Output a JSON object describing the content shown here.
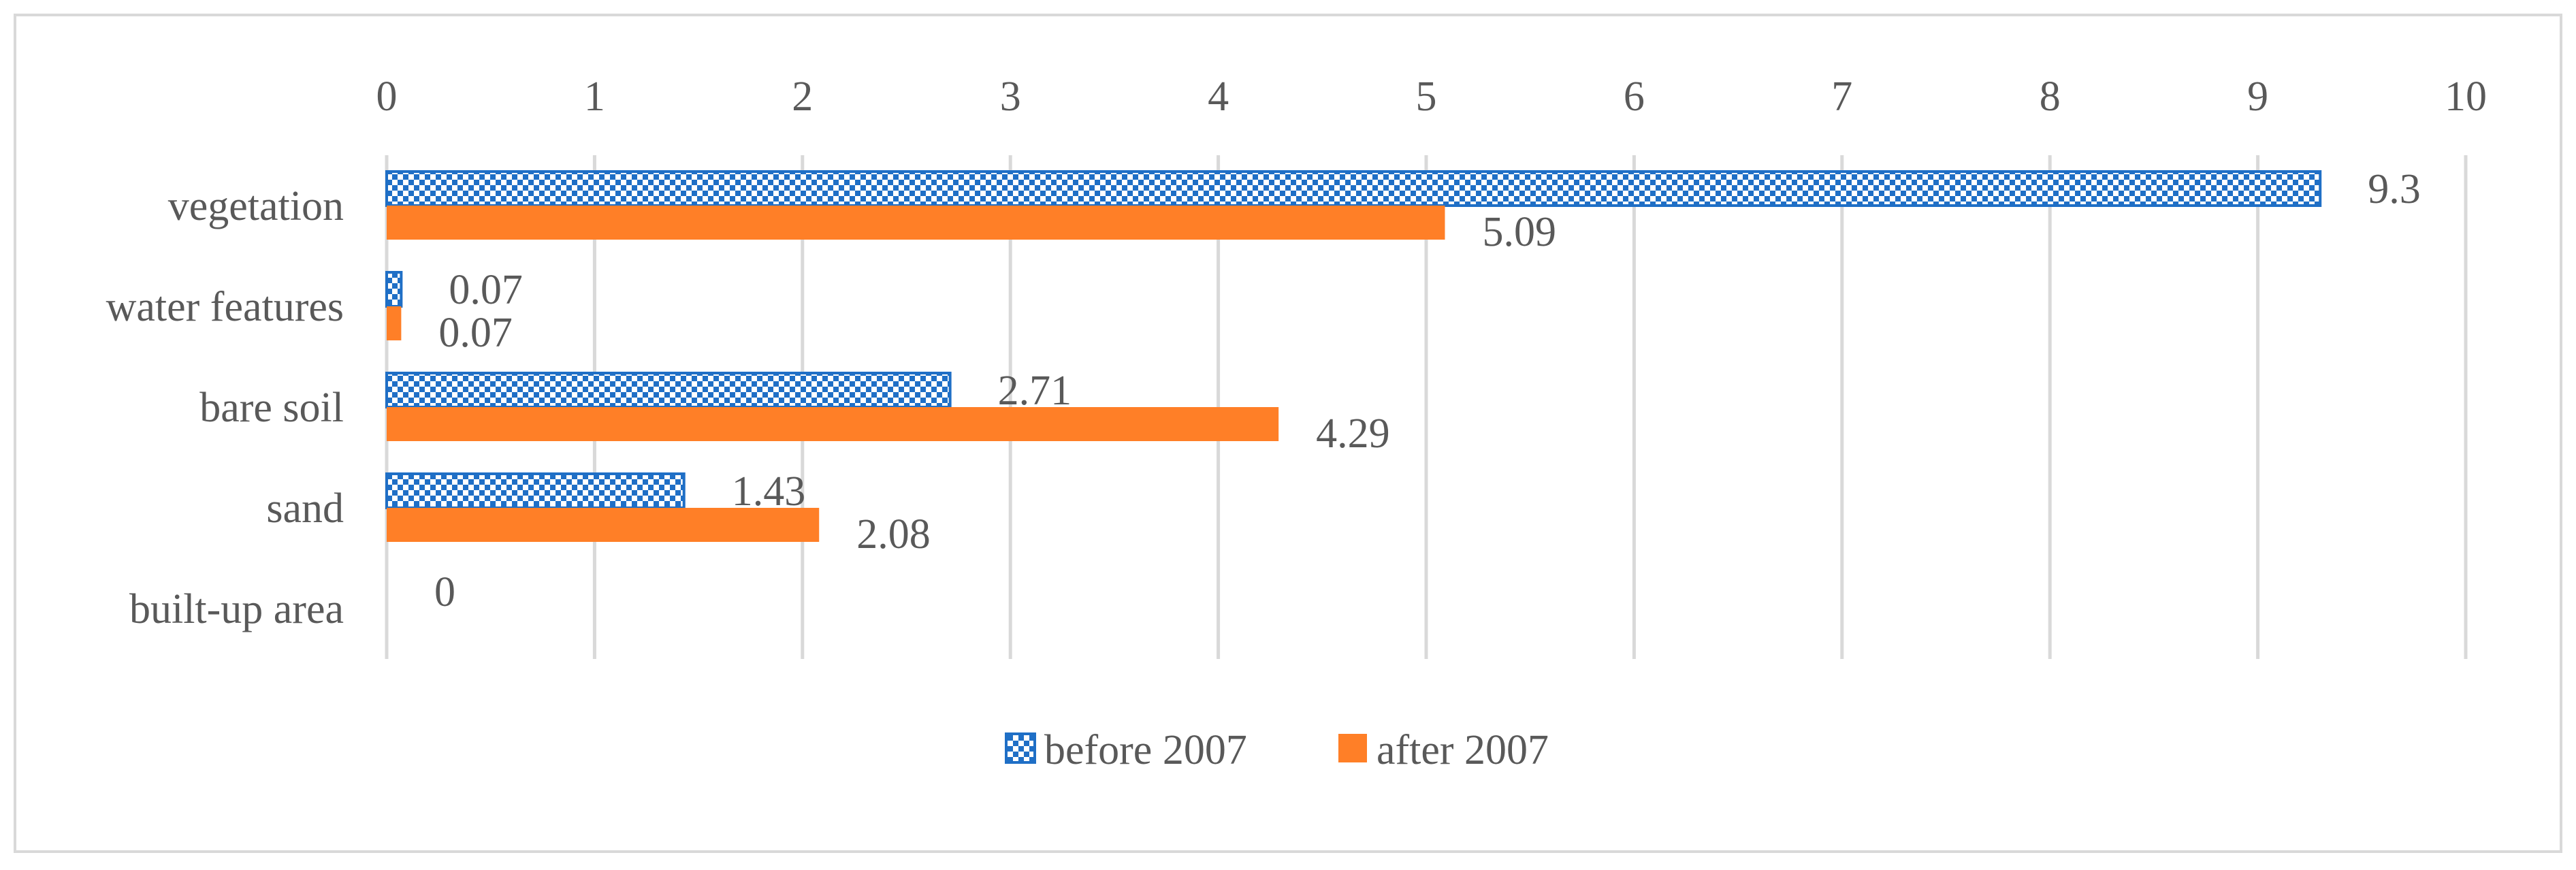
{
  "colors": {
    "before": "#1F6FC6",
    "after": "#FF7F27",
    "grid": "#D9D9D9",
    "text": "#595959",
    "border": "#D9D9D9"
  },
  "legend_position": "bottom",
  "chart_data": {
    "type": "bar",
    "orientation": "horizontal",
    "title": "",
    "xlabel": "",
    "ylabel": "",
    "categories": [
      "vegetation",
      "water features",
      "bare soil",
      "sand",
      "built-up area"
    ],
    "series": [
      {
        "name": "before 2007",
        "values": [
          9.3,
          0.07,
          2.71,
          1.43,
          0
        ],
        "labels": [
          "9.3",
          "0.07",
          "2.71",
          "1.43",
          "0"
        ],
        "pattern": "checkerboard"
      },
      {
        "name": "after 2007",
        "values": [
          5.09,
          0.07,
          4.29,
          2.08,
          null
        ],
        "labels": [
          "5.09",
          "0.07",
          "4.29",
          "2.08",
          ""
        ],
        "pattern": "solid"
      }
    ],
    "xlim": [
      0,
      10
    ],
    "xticks": [
      "0",
      "1",
      "2",
      "3",
      "4",
      "5",
      "6",
      "7",
      "8",
      "9",
      "10"
    ],
    "x_axis_position": "top",
    "grid": true
  }
}
